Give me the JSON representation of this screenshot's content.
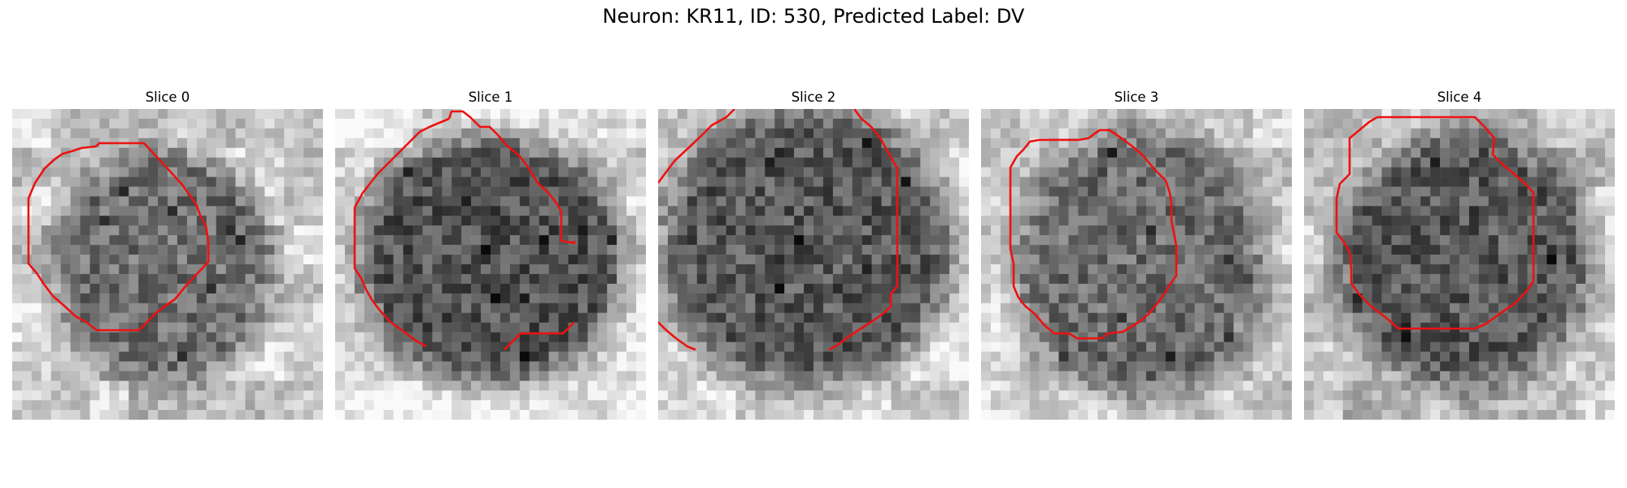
{
  "figure": {
    "title": "Neuron: KR11, ID: 530, Predicted Label: DV",
    "contour_color": "#ee1111"
  },
  "slices": [
    {
      "title": "Slice 0"
    },
    {
      "title": "Slice 1"
    },
    {
      "title": "Slice 2"
    },
    {
      "title": "Slice 3"
    },
    {
      "title": "Slice 4"
    }
  ]
}
